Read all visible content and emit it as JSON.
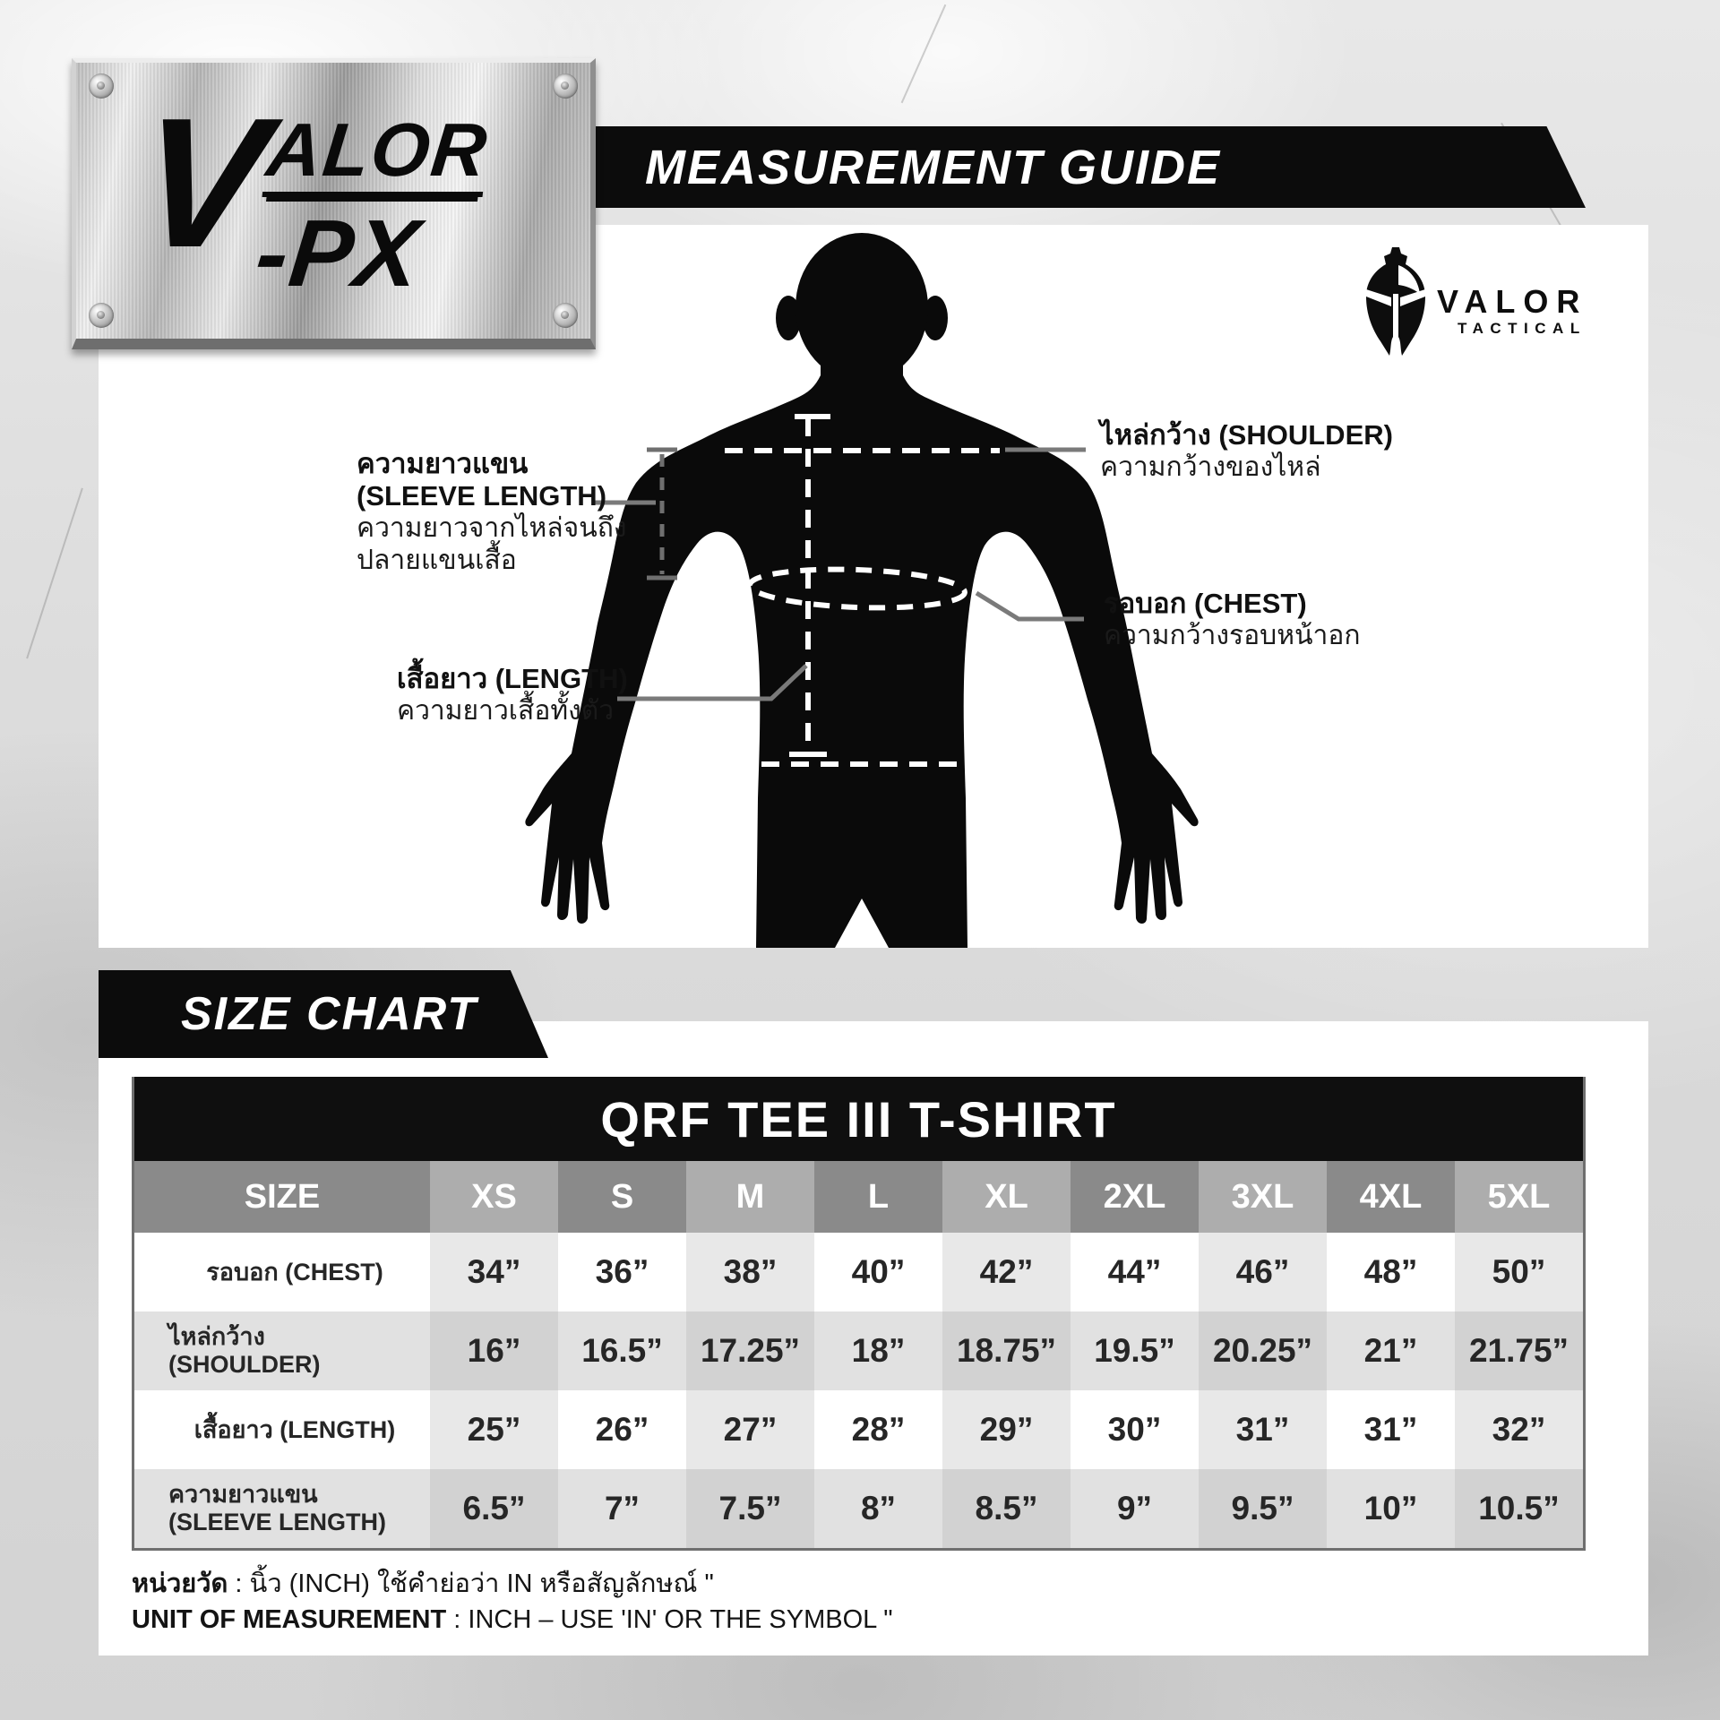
{
  "plate": {
    "v": "V",
    "alor": "ALOR",
    "px": "-PX"
  },
  "header": {
    "title": "MEASUREMENT GUIDE"
  },
  "tactical_logo": {
    "name": "VALOR",
    "subtitle": "TACTICAL",
    "icon": "spartan-helmet-icon"
  },
  "diagram": {
    "sleeve": {
      "line1": "ความยาวแขน",
      "line2": "(SLEEVE LENGTH)",
      "line3": "ความยาวจากไหล่จนถึง",
      "line4": "ปลายแขนเสื้อ"
    },
    "shoulder": {
      "title": "ไหล่กว้าง (SHOULDER)",
      "desc": "ความกว้างของไหล่"
    },
    "chest": {
      "title": "รอบอก (CHEST)",
      "desc": "ความกว้างรอบหน้าอก"
    },
    "length": {
      "title": "เสื้อยาว (LENGTH)",
      "desc": "ความยาวเสื้อทั้งตัว"
    }
  },
  "size_chart": {
    "banner": "SIZE CHART",
    "product": "QRF TEE III T-SHIRT",
    "columns": [
      "SIZE",
      "XS",
      "S",
      "M",
      "L",
      "XL",
      "2XL",
      "3XL",
      "4XL",
      "5XL"
    ],
    "rows": [
      {
        "label": "รอบอก (CHEST)",
        "values": [
          "34”",
          "36”",
          "38”",
          "40”",
          "42”",
          "44”",
          "46”",
          "48”",
          "50”"
        ]
      },
      {
        "label": "ไหล่กว้าง (SHOULDER)",
        "values": [
          "16”",
          "16.5”",
          "17.25”",
          "18”",
          "18.75”",
          "19.5”",
          "20.25”",
          "21”",
          "21.75”"
        ]
      },
      {
        "label": "เสื้อยาว (LENGTH)",
        "values": [
          "25”",
          "26”",
          "27”",
          "28”",
          "29”",
          "30”",
          "31”",
          "31”",
          "32”"
        ]
      },
      {
        "label": "ความยาวแขน (SLEEVE LENGTH)",
        "values": [
          "6.5”",
          "7”",
          "7.5”",
          "8”",
          "8.5”",
          "9”",
          "9.5”",
          "10”",
          "10.5”"
        ]
      }
    ],
    "notes": [
      {
        "bold": "หน่วยวัด",
        "rest": " : นิ้ว (INCH) ใช้คำย่อว่า IN หรือสัญลักษณ์ \""
      },
      {
        "bold": "UNIT OF MEASUREMENT",
        "rest": " : INCH – USE 'IN' OR THE SYMBOL \""
      }
    ]
  },
  "colors": {
    "banner_bg": "#0c0c0c",
    "header_dark": "#8a8a8a",
    "header_light": "#adadad",
    "white_row_stripe": "#e8e8e8",
    "gray_row": "#e1e1e1",
    "gray_row_stripe": "#d2d2d2",
    "connector_gray": "#7a7a7a"
  }
}
